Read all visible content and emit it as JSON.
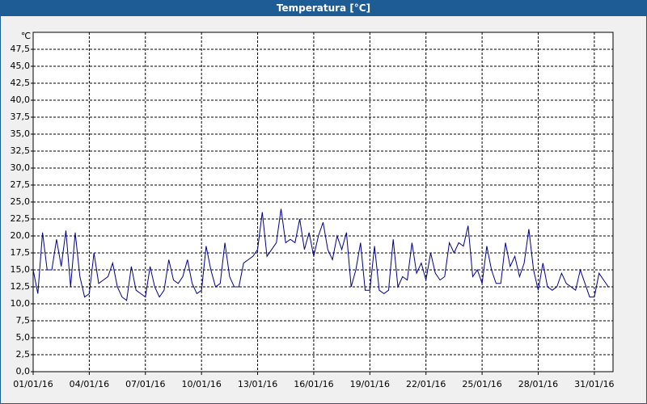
{
  "window": {
    "title": "Temperatura [°C]"
  },
  "chart_data": {
    "type": "line",
    "y_label": "℃",
    "grid": true,
    "xlim": [
      "2016-01-01T00:00",
      "2016-02-01T00:00"
    ],
    "xticks": [
      {
        "value": "2016-01-01T00:00",
        "label": "01/01/16"
      },
      {
        "value": "2016-01-04T00:00",
        "label": "04/01/16"
      },
      {
        "value": "2016-01-07T00:00",
        "label": "07/01/16"
      },
      {
        "value": "2016-01-10T00:00",
        "label": "10/01/16"
      },
      {
        "value": "2016-01-13T00:00",
        "label": "13/01/16"
      },
      {
        "value": "2016-01-16T00:00",
        "label": "16/01/16"
      },
      {
        "value": "2016-01-19T00:00",
        "label": "19/01/16"
      },
      {
        "value": "2016-01-22T00:00",
        "label": "22/01/16"
      },
      {
        "value": "2016-01-25T00:00",
        "label": "25/01/16"
      },
      {
        "value": "2016-01-28T00:00",
        "label": "28/01/16"
      },
      {
        "value": "2016-01-31T00:00",
        "label": "31/01/16"
      }
    ],
    "ylim": [
      0,
      50
    ],
    "yticks": [
      {
        "value": 0,
        "label": "0,0"
      },
      {
        "value": 2.5,
        "label": "2,5"
      },
      {
        "value": 5,
        "label": "5,0"
      },
      {
        "value": 7.5,
        "label": "7,5"
      },
      {
        "value": 10,
        "label": "10,0"
      },
      {
        "value": 12.5,
        "label": "12,5"
      },
      {
        "value": 15,
        "label": "15,0"
      },
      {
        "value": 17.5,
        "label": "17,5"
      },
      {
        "value": 20,
        "label": "20,0"
      },
      {
        "value": 22.5,
        "label": "22,5"
      },
      {
        "value": 25,
        "label": "25,0"
      },
      {
        "value": 27.5,
        "label": "27,5"
      },
      {
        "value": 30,
        "label": "30,0"
      },
      {
        "value": 32.5,
        "label": "32,5"
      },
      {
        "value": 35,
        "label": "35,0"
      },
      {
        "value": 37.5,
        "label": "37,5"
      },
      {
        "value": 40,
        "label": "40,0"
      },
      {
        "value": 42.5,
        "label": "42,5"
      },
      {
        "value": 45,
        "label": "45,0"
      },
      {
        "value": 47.5,
        "label": "47,5"
      }
    ],
    "x": [
      "2016-01-01T00:00",
      "2016-01-01T06:00",
      "2016-01-01T12:00",
      "2016-01-01T18:00",
      "2016-01-02T00:00",
      "2016-01-02T06:00",
      "2016-01-02T12:00",
      "2016-01-02T18:00",
      "2016-01-03T00:00",
      "2016-01-03T06:00",
      "2016-01-03T12:00",
      "2016-01-03T18:00",
      "2016-01-04T00:00",
      "2016-01-04T06:00",
      "2016-01-04T12:00",
      "2016-01-04T18:00",
      "2016-01-05T00:00",
      "2016-01-05T06:00",
      "2016-01-05T12:00",
      "2016-01-05T18:00",
      "2016-01-06T00:00",
      "2016-01-06T06:00",
      "2016-01-06T12:00",
      "2016-01-06T18:00",
      "2016-01-07T00:00",
      "2016-01-07T06:00",
      "2016-01-07T12:00",
      "2016-01-07T18:00",
      "2016-01-08T00:00",
      "2016-01-08T06:00",
      "2016-01-08T12:00",
      "2016-01-08T18:00",
      "2016-01-09T00:00",
      "2016-01-09T06:00",
      "2016-01-09T12:00",
      "2016-01-09T18:00",
      "2016-01-10T00:00",
      "2016-01-10T06:00",
      "2016-01-10T12:00",
      "2016-01-10T18:00",
      "2016-01-11T00:00",
      "2016-01-11T06:00",
      "2016-01-11T12:00",
      "2016-01-11T18:00",
      "2016-01-12T00:00",
      "2016-01-12T06:00",
      "2016-01-12T12:00",
      "2016-01-12T18:00",
      "2016-01-13T00:00",
      "2016-01-13T06:00",
      "2016-01-13T12:00",
      "2016-01-13T18:00",
      "2016-01-14T00:00",
      "2016-01-14T06:00",
      "2016-01-14T12:00",
      "2016-01-14T18:00",
      "2016-01-15T00:00",
      "2016-01-15T06:00",
      "2016-01-15T12:00",
      "2016-01-15T18:00",
      "2016-01-16T00:00",
      "2016-01-16T06:00",
      "2016-01-16T12:00",
      "2016-01-16T18:00",
      "2016-01-17T00:00",
      "2016-01-17T06:00",
      "2016-01-17T12:00",
      "2016-01-17T18:00",
      "2016-01-18T00:00",
      "2016-01-18T06:00",
      "2016-01-18T12:00",
      "2016-01-18T18:00",
      "2016-01-19T00:00",
      "2016-01-19T06:00",
      "2016-01-19T12:00",
      "2016-01-19T18:00",
      "2016-01-20T00:00",
      "2016-01-20T06:00",
      "2016-01-20T12:00",
      "2016-01-20T18:00",
      "2016-01-21T00:00",
      "2016-01-21T06:00",
      "2016-01-21T12:00",
      "2016-01-21T18:00",
      "2016-01-22T00:00",
      "2016-01-22T06:00",
      "2016-01-22T12:00",
      "2016-01-22T18:00",
      "2016-01-23T00:00",
      "2016-01-23T06:00",
      "2016-01-23T12:00",
      "2016-01-23T18:00",
      "2016-01-24T00:00",
      "2016-01-24T06:00",
      "2016-01-24T12:00",
      "2016-01-24T18:00",
      "2016-01-25T00:00",
      "2016-01-25T06:00",
      "2016-01-25T12:00",
      "2016-01-25T18:00",
      "2016-01-26T00:00",
      "2016-01-26T06:00",
      "2016-01-26T12:00",
      "2016-01-26T18:00",
      "2016-01-27T00:00",
      "2016-01-27T06:00",
      "2016-01-27T12:00",
      "2016-01-27T18:00",
      "2016-01-28T00:00",
      "2016-01-28T06:00",
      "2016-01-28T12:00",
      "2016-01-28T18:00",
      "2016-01-29T00:00",
      "2016-01-29T06:00",
      "2016-01-29T12:00",
      "2016-01-29T18:00",
      "2016-01-30T00:00",
      "2016-01-30T06:00",
      "2016-01-30T12:00",
      "2016-01-30T18:00",
      "2016-01-31T00:00",
      "2016-01-31T06:00",
      "2016-01-31T12:00",
      "2016-01-31T18:00"
    ],
    "series": [
      {
        "color": "#00008b",
        "values": [
          15,
          11.5,
          20.5,
          15,
          15,
          19.5,
          15.5,
          20.8,
          12.5,
          20.5,
          14,
          11,
          11.5,
          17.5,
          13,
          13.5,
          14,
          16,
          12.5,
          11,
          10.5,
          15.5,
          12,
          11.5,
          11,
          15.5,
          12.5,
          11,
          12,
          16.5,
          13.5,
          13,
          14,
          16.5,
          13,
          11.5,
          12,
          18.5,
          15,
          12.5,
          13,
          19,
          14,
          12.5,
          12.5,
          16,
          16.5,
          17,
          18,
          23.5,
          17,
          18,
          19,
          24,
          19,
          19.5,
          19,
          22.5,
          18,
          20.5,
          17,
          20,
          22,
          18,
          16.5,
          20,
          18,
          20.5,
          12.5,
          15,
          19,
          12,
          12,
          18.5,
          12,
          11.5,
          12,
          19.5,
          12.5,
          14,
          13.5,
          19,
          14.5,
          16,
          13.5,
          17.5,
          14.5,
          13.5,
          14,
          19,
          17.5,
          19,
          18.5,
          21.5,
          14,
          15,
          13,
          18.5,
          15,
          13,
          13,
          19,
          15.5,
          17,
          14,
          16,
          21,
          15,
          12,
          16,
          12.5,
          12,
          12.5,
          14.5,
          13,
          12.5,
          12,
          15,
          13,
          11,
          11,
          14.5,
          13.5,
          12.5
        ]
      }
    ]
  }
}
